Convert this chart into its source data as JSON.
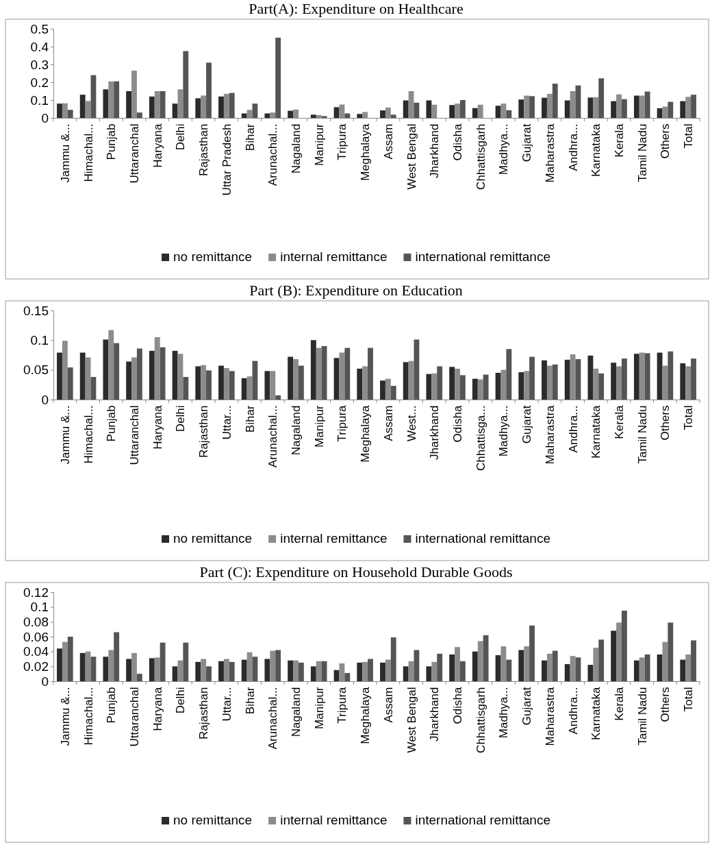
{
  "chart_data": [
    {
      "type": "bar",
      "title": "Part(A): Expenditure on Healthcare",
      "categories": [
        "Jammu &...",
        "Himachal...",
        "Punjab",
        "Uttaranchal",
        "Haryana",
        "Delhi",
        "Rajasthan",
        "Uttar Pradesh",
        "Bihar",
        "Arunachal...",
        "Nagaland",
        "Manipur",
        "Tripura",
        "Meghalaya",
        "Assam",
        "West Bengal",
        "Jharkhand",
        "Odisha",
        "Chhattisgarh",
        "Madhya...",
        "Gujarat",
        "Maharastra",
        "Andhra...",
        "Karnataka",
        "Kerala",
        "Tamil Nadu",
        "Others",
        "Total"
      ],
      "series": [
        {
          "name": "no remittance",
          "color": "#2b2b2b",
          "values": [
            0.08,
            0.13,
            0.16,
            0.15,
            0.12,
            0.08,
            0.11,
            0.12,
            0.025,
            0.025,
            0.04,
            0.018,
            0.06,
            0.022,
            0.042,
            0.098,
            0.098,
            0.072,
            0.055,
            0.068,
            0.103,
            0.113,
            0.098,
            0.114,
            0.094,
            0.125,
            0.054,
            0.094
          ]
        },
        {
          "name": "internal remittance",
          "color": "#8c8c8c",
          "values": [
            0.082,
            0.095,
            0.205,
            0.265,
            0.15,
            0.16,
            0.125,
            0.135,
            0.045,
            0.03,
            0.047,
            0.016,
            0.075,
            0.033,
            0.058,
            0.15,
            0.074,
            0.08,
            0.074,
            0.08,
            0.125,
            0.135,
            0.15,
            0.116,
            0.132,
            0.125,
            0.063,
            0.118
          ]
        },
        {
          "name": "international remittance",
          "color": "#555555",
          "values": [
            0.045,
            0.24,
            0.205,
            0.03,
            0.15,
            0.375,
            0.31,
            0.14,
            0.08,
            0.45,
            null,
            0.01,
            0.025,
            null,
            0.018,
            0.085,
            null,
            0.1,
            null,
            0.043,
            0.122,
            0.192,
            0.182,
            0.222,
            0.105,
            0.148,
            0.09,
            0.13
          ]
        }
      ],
      "ylim": [
        0,
        0.5
      ],
      "yticks": [
        0,
        0.1,
        0.2,
        0.3,
        0.4,
        0.5
      ],
      "legend": "bottom"
    },
    {
      "type": "bar",
      "title": "Part (B): Expenditure on Education",
      "categories": [
        "Jammu &...",
        "Himachal...",
        "Punjab",
        "Uttaranchal",
        "Haryana",
        "Delhi",
        "Rajasthan",
        "Uttar...",
        "Bihar",
        "Arunachal...",
        "Nagaland",
        "Manipur",
        "Tripura",
        "Meghalaya",
        "Assam",
        "West...",
        "Jharkhand",
        "Odisha",
        "Chhattisga...",
        "Madhya...",
        "Gujarat",
        "Maharastra",
        "Andhra...",
        "Karnataka",
        "Kerala",
        "Tamil Nadu",
        "Others",
        "Total"
      ],
      "series": [
        {
          "name": "no remittance",
          "color": "#2b2b2b",
          "values": [
            0.079,
            0.079,
            0.101,
            0.064,
            0.082,
            0.082,
            0.056,
            0.057,
            0.036,
            0.048,
            0.072,
            0.1,
            0.07,
            0.052,
            0.032,
            0.063,
            0.043,
            0.055,
            0.035,
            0.045,
            0.046,
            0.066,
            0.067,
            0.074,
            0.062,
            0.077,
            0.079,
            0.061
          ]
        },
        {
          "name": "internal remittance",
          "color": "#8c8c8c",
          "values": [
            0.099,
            0.071,
            0.117,
            0.071,
            0.105,
            0.077,
            0.058,
            0.053,
            0.039,
            0.048,
            0.068,
            0.087,
            0.079,
            0.056,
            0.035,
            0.065,
            0.044,
            0.052,
            0.034,
            0.05,
            0.048,
            0.057,
            0.076,
            0.052,
            0.056,
            0.079,
            0.057,
            0.056
          ]
        },
        {
          "name": "international remittance",
          "color": "#555555",
          "values": [
            0.054,
            0.038,
            0.095,
            0.086,
            0.088,
            0.038,
            0.049,
            0.048,
            0.065,
            0.007,
            0.057,
            0.09,
            0.087,
            0.087,
            0.023,
            0.101,
            0.056,
            0.041,
            0.042,
            0.085,
            0.072,
            0.059,
            0.068,
            0.044,
            0.069,
            0.078,
            0.081,
            0.069
          ]
        }
      ],
      "ylim": [
        0,
        0.15
      ],
      "yticks": [
        0,
        0.05,
        0.1,
        0.15
      ],
      "legend": "bottom"
    },
    {
      "type": "bar",
      "title": "Part (C): Expenditure on Household Durable Goods",
      "categories": [
        "Jammu &...",
        "Himachal...",
        "Punjab",
        "Uttaranchal",
        "Haryana",
        "Delhi",
        "Rajasthan",
        "Uttar...",
        "Bihar",
        "Arunachal...",
        "Nagaland",
        "Manipur",
        "Tripura",
        "Meghalaya",
        "Assam",
        "West Bengal",
        "Jharkhand",
        "Odisha",
        "Chhattisgarh",
        "Madhya...",
        "Gujarat",
        "Maharastra",
        "Andhra...",
        "Karnataka",
        "Kerala",
        "Tamil Nadu",
        "Others",
        "Total"
      ],
      "series": [
        {
          "name": "no remittance",
          "color": "#2b2b2b",
          "values": [
            0.044,
            0.038,
            0.033,
            0.03,
            0.031,
            0.02,
            0.026,
            0.027,
            0.029,
            0.03,
            0.028,
            0.02,
            0.015,
            0.025,
            0.025,
            0.02,
            0.02,
            0.036,
            0.04,
            0.035,
            0.042,
            0.028,
            0.023,
            0.022,
            0.068,
            0.028,
            0.036,
            0.029
          ]
        },
        {
          "name": "internal remittance",
          "color": "#8c8c8c",
          "values": [
            0.053,
            0.04,
            0.042,
            0.038,
            0.032,
            0.028,
            0.03,
            0.03,
            0.039,
            0.041,
            0.028,
            0.027,
            0.024,
            0.026,
            0.029,
            0.027,
            0.026,
            0.046,
            0.054,
            0.047,
            0.047,
            0.037,
            0.034,
            0.045,
            0.079,
            0.032,
            0.053,
            0.036
          ]
        },
        {
          "name": "international remittance",
          "color": "#555555",
          "values": [
            0.06,
            0.033,
            0.066,
            0.01,
            0.052,
            0.052,
            0.02,
            0.026,
            0.033,
            0.042,
            0.025,
            0.027,
            0.011,
            0.03,
            0.059,
            0.042,
            0.037,
            0.027,
            0.062,
            0.029,
            0.075,
            0.041,
            0.032,
            0.056,
            0.095,
            0.036,
            0.079,
            0.055
          ]
        }
      ],
      "ylim": [
        0,
        0.12
      ],
      "yticks": [
        0,
        0.02,
        0.04,
        0.06,
        0.08,
        0.1,
        0.12
      ],
      "legend": "bottom"
    }
  ]
}
